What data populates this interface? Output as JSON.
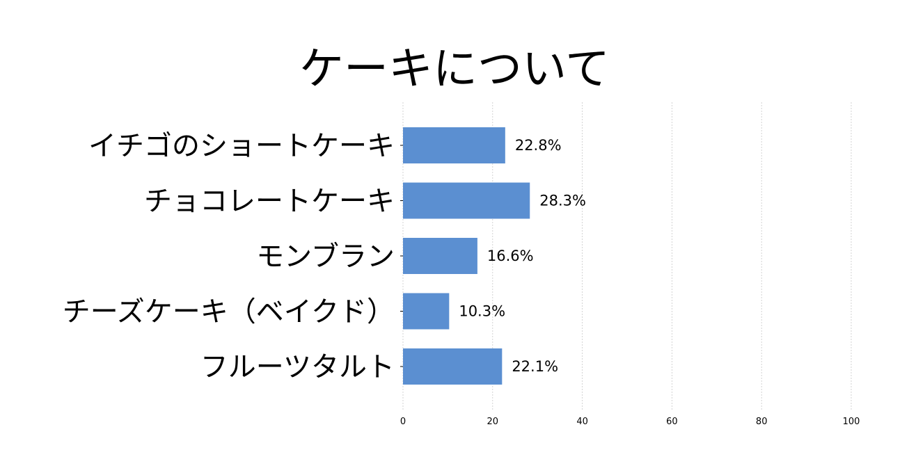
{
  "chart_data": {
    "type": "bar",
    "orientation": "horizontal",
    "title": "ケーキについて",
    "categories": [
      "イチゴのショートケーキ",
      "チョコレートケーキ",
      "モンブラン",
      "チーズケーキ（ベイクド）",
      "フルーツタルト"
    ],
    "values": [
      22.8,
      28.3,
      16.6,
      10.3,
      22.1
    ],
    "value_labels": [
      "22.8%",
      "28.3%",
      "16.6%",
      "10.3%",
      "22.1%"
    ],
    "xlim": [
      0,
      100
    ],
    "xticks": [
      0,
      20,
      40,
      60,
      80,
      100
    ],
    "xtick_labels": [
      "0",
      "20",
      "40",
      "60",
      "80",
      "100"
    ],
    "grid": "vertical-dashed",
    "bar_color": "#5b8fd1",
    "xlabel": "",
    "ylabel": ""
  }
}
